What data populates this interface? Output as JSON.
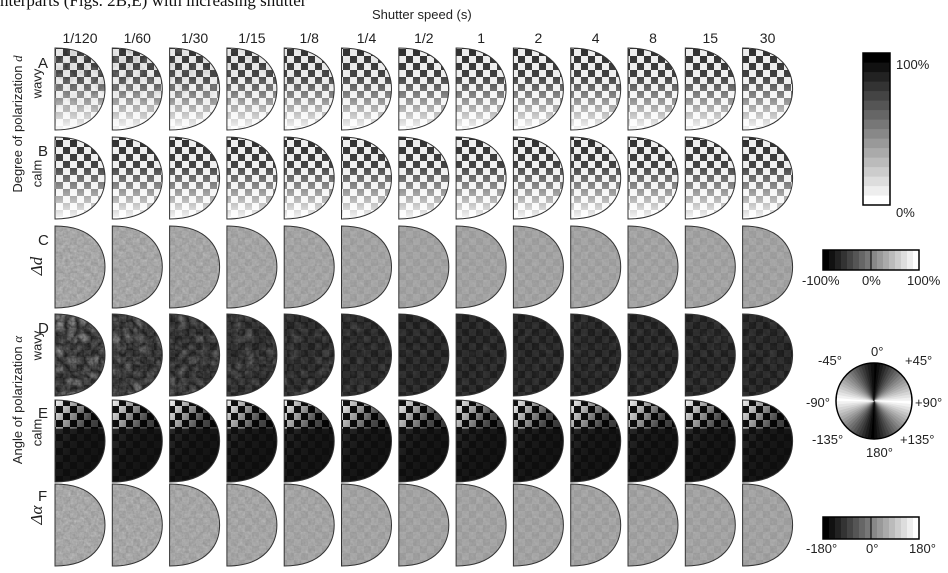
{
  "caption": "nterparts (Figs. 2B,E) with increasing shutter",
  "x_axis_title": "Shutter speed (s)",
  "shutter_speeds": [
    "1/120",
    "1/60",
    "1/30",
    "1/15",
    "1/8",
    "1/4",
    "1/2",
    "1",
    "2",
    "4",
    "8",
    "15",
    "30"
  ],
  "row_letters": [
    "A",
    "B",
    "C",
    "D",
    "E",
    "F"
  ],
  "group_labels": {
    "degree_of_polarization": "Degree of polarization",
    "degree_symbol": "d",
    "angle_of_polarization": "Angle of polarization",
    "angle_symbol": "α"
  },
  "row_side_labels": {
    "A": "wavy",
    "B": "calm",
    "C": "Δd",
    "D": "wavy",
    "E": "calm",
    "F": "Δα"
  },
  "legend_degree": {
    "max_label": "100%",
    "min_label": "0%"
  },
  "legend_delta_d": {
    "labels": [
      "-100%",
      "0%",
      "100%"
    ]
  },
  "legend_angle": {
    "labels": [
      "0°",
      "+45°",
      "+90°",
      "+135°",
      "180°",
      "-135°",
      "-90°",
      "-45°"
    ]
  },
  "legend_delta_alpha": {
    "labels": [
      "-180°",
      "0°",
      "180°"
    ]
  }
}
